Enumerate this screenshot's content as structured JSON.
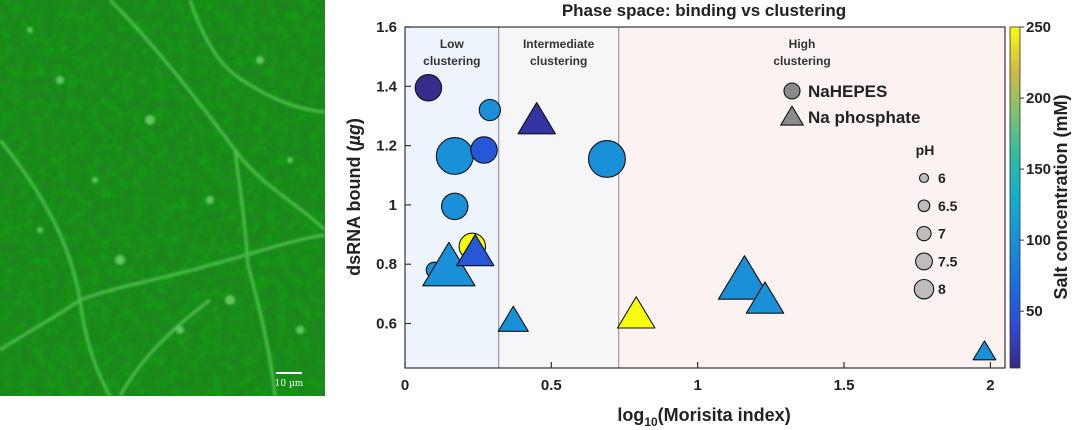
{
  "micrograph": {
    "scale_bar_label": "10 µm",
    "color": "#2e9a2e"
  },
  "chart_data": {
    "type": "scatter",
    "title": "Phase space: binding vs clustering",
    "xlabel_pre": "log",
    "xlabel_sub": "10",
    "xlabel_post": "(Morisita  index)",
    "ylabel_pre": "dsRNA  bound  (",
    "ylabel_mu": "µg",
    "ylabel_post": ")",
    "xlim": [
      0,
      2.05
    ],
    "ylim": [
      0.45,
      1.6
    ],
    "xticks": [
      0,
      0.5,
      1,
      1.5,
      2
    ],
    "xtick_labels": [
      "0",
      "0.5",
      "1",
      "1.5",
      "2"
    ],
    "yticks": [
      0.6,
      0.8,
      1,
      1.2,
      1.4,
      1.6
    ],
    "ytick_labels": [
      "0.6",
      "0.8",
      "1",
      "1.2",
      "1.4",
      "1.6"
    ],
    "regions": [
      {
        "label_line1": "Low",
        "label_line2": "clustering",
        "x0": 0,
        "x1": 0.32,
        "color": "#eef4fc"
      },
      {
        "label_line1": "Intermediate",
        "label_line2": "clustering",
        "x0": 0.32,
        "x1": 0.73,
        "color": "#f6f6f9"
      },
      {
        "label_line1": "High",
        "label_line2": "clustering",
        "x0": 0.73,
        "x1": 2.05,
        "color": "#fcf2f2"
      }
    ],
    "colorbar": {
      "label": "Salt concentration (mM)",
      "min": 10,
      "max": 250,
      "ticks": [
        50,
        100,
        150,
        200,
        250
      ],
      "tick_labels": [
        "50",
        "100",
        "150",
        "200",
        "250"
      ],
      "colormap": "parula"
    },
    "legend_markers": [
      {
        "shape": "circle",
        "label": "NaHEPES"
      },
      {
        "shape": "triangle",
        "label": "Na phosphate"
      }
    ],
    "size_legend": {
      "title": "pH",
      "entries": [
        {
          "ph": 6,
          "label": "6"
        },
        {
          "ph": 6.5,
          "label": "6.5"
        },
        {
          "ph": 7,
          "label": "7"
        },
        {
          "ph": 7.5,
          "label": "7.5"
        },
        {
          "ph": 8,
          "label": "8"
        }
      ]
    },
    "series": [
      {
        "name": "NaHEPES",
        "shape": "circle",
        "points": [
          {
            "x": 0.08,
            "y": 1.395,
            "salt": 12,
            "ph": 7
          },
          {
            "x": 0.17,
            "y": 1.165,
            "salt": 100,
            "ph": 8
          },
          {
            "x": 0.29,
            "y": 1.32,
            "salt": 100,
            "ph": 6.5
          },
          {
            "x": 0.27,
            "y": 1.185,
            "salt": 50,
            "ph": 7
          },
          {
            "x": 0.17,
            "y": 0.995,
            "salt": 100,
            "ph": 7
          },
          {
            "x": 0.69,
            "y": 1.155,
            "salt": 100,
            "ph": 8
          },
          {
            "x": 0.23,
            "y": 0.86,
            "salt": 250,
            "ph": 7
          },
          {
            "x": 0.1,
            "y": 0.78,
            "salt": 100,
            "ph": 6
          }
        ]
      },
      {
        "name": "Na phosphate",
        "shape": "triangle",
        "points": [
          {
            "x": 0.45,
            "y": 1.285,
            "salt": 20,
            "ph": 7
          },
          {
            "x": 0.15,
            "y": 0.79,
            "salt": 100,
            "ph": 8
          },
          {
            "x": 0.24,
            "y": 0.84,
            "salt": 50,
            "ph": 7
          },
          {
            "x": 0.37,
            "y": 0.61,
            "salt": 100,
            "ph": 6.5
          },
          {
            "x": 0.79,
            "y": 0.63,
            "salt": 250,
            "ph": 7
          },
          {
            "x": 1.16,
            "y": 0.745,
            "salt": 100,
            "ph": 8
          },
          {
            "x": 1.23,
            "y": 0.68,
            "salt": 100,
            "ph": 7
          },
          {
            "x": 1.98,
            "y": 0.505,
            "salt": 100,
            "ph": 6
          }
        ]
      }
    ]
  }
}
